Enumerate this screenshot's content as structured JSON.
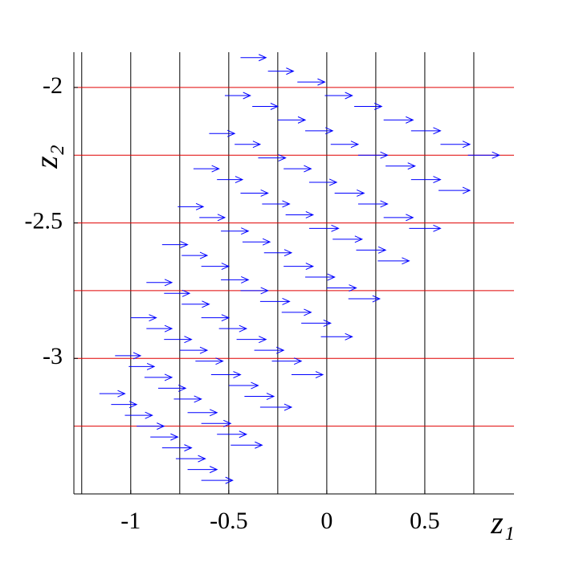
{
  "chart_data": {
    "type": "quiver",
    "x_label": "z₁",
    "y_label": "z₂",
    "xlim": [
      -1.29,
      0.955
    ],
    "ylim": [
      -3.5,
      -1.87
    ],
    "xticks": [
      -1,
      -0.5,
      0,
      0.5
    ],
    "yticks": [
      -2,
      -2.5,
      -3
    ],
    "xgrid_lines": [
      -1.25,
      -1,
      -0.75,
      -0.5,
      -0.25,
      0,
      0.25,
      0.5,
      0.75
    ],
    "xgrid_color": "#000000",
    "ygrid_lines": [
      -2,
      -2.25,
      -2.5,
      -2.75,
      -3,
      -3.25
    ],
    "ygrid_color": "#e00000",
    "color": "#0000ff",
    "x": [
      -0.44,
      -0.3,
      -0.15,
      -0.01,
      0.14,
      0.29,
      0.43,
      0.58,
      0.72,
      -0.52,
      -0.38,
      -0.25,
      -0.11,
      0.02,
      0.16,
      0.3,
      0.43,
      0.57,
      -0.6,
      -0.47,
      -0.35,
      -0.22,
      -0.09,
      0.04,
      0.16,
      0.29,
      0.42,
      -0.68,
      -0.56,
      -0.44,
      -0.33,
      -0.21,
      -0.09,
      0.03,
      0.15,
      0.26,
      -0.76,
      -0.65,
      -0.54,
      -0.43,
      -0.32,
      -0.22,
      -0.11,
      0.0,
      0.11,
      -0.84,
      -0.74,
      -0.64,
      -0.54,
      -0.44,
      -0.34,
      -0.23,
      -0.13,
      -0.03,
      -0.92,
      -0.83,
      -0.74,
      -0.64,
      -0.55,
      -0.46,
      -0.37,
      -0.28,
      -0.18,
      -1.0,
      -0.92,
      -0.83,
      -0.75,
      -0.67,
      -0.59,
      -0.5,
      -0.42,
      -0.34,
      -1.08,
      -1.01,
      -0.93,
      -0.86,
      -0.78,
      -0.71,
      -0.64,
      -0.56,
      -0.49,
      -1.16,
      -1.1,
      -1.03,
      -0.97,
      -0.9,
      -0.84,
      -0.77,
      -0.71,
      -0.64
    ],
    "y": [
      -1.89,
      -1.94,
      -1.98,
      -2.03,
      -2.07,
      -2.12,
      -2.16,
      -2.21,
      -2.25,
      -2.03,
      -2.07,
      -2.12,
      -2.16,
      -2.21,
      -2.25,
      -2.29,
      -2.34,
      -2.38,
      -2.17,
      -2.21,
      -2.26,
      -2.3,
      -2.35,
      -2.39,
      -2.43,
      -2.48,
      -2.52,
      -2.3,
      -2.34,
      -2.39,
      -2.43,
      -2.47,
      -2.52,
      -2.56,
      -2.6,
      -2.64,
      -2.44,
      -2.48,
      -2.53,
      -2.57,
      -2.61,
      -2.66,
      -2.7,
      -2.74,
      -2.78,
      -2.58,
      -2.62,
      -2.66,
      -2.71,
      -2.75,
      -2.79,
      -2.83,
      -2.87,
      -2.92,
      -2.72,
      -2.76,
      -2.8,
      -2.85,
      -2.89,
      -2.93,
      -2.97,
      -3.01,
      -3.06,
      -2.85,
      -2.89,
      -2.93,
      -2.97,
      -3.01,
      -3.06,
      -3.1,
      -3.14,
      -3.18,
      -2.99,
      -3.03,
      -3.07,
      -3.11,
      -3.15,
      -3.2,
      -3.24,
      -3.28,
      -3.32,
      -3.13,
      -3.17,
      -3.21,
      -3.25,
      -3.29,
      -3.33,
      -3.37,
      -3.41,
      -3.45
    ],
    "u": [
      0.13,
      0.13,
      0.14,
      0.14,
      0.14,
      0.15,
      0.15,
      0.15,
      0.16,
      0.13,
      0.13,
      0.14,
      0.14,
      0.14,
      0.15,
      0.15,
      0.15,
      0.16,
      0.13,
      0.13,
      0.14,
      0.14,
      0.14,
      0.15,
      0.15,
      0.15,
      0.16,
      0.13,
      0.13,
      0.14,
      0.14,
      0.14,
      0.15,
      0.15,
      0.15,
      0.16,
      0.13,
      0.13,
      0.14,
      0.14,
      0.14,
      0.15,
      0.15,
      0.15,
      0.16,
      0.13,
      0.13,
      0.14,
      0.14,
      0.14,
      0.15,
      0.15,
      0.15,
      0.16,
      0.13,
      0.13,
      0.14,
      0.14,
      0.14,
      0.15,
      0.15,
      0.15,
      0.16,
      0.13,
      0.13,
      0.14,
      0.14,
      0.14,
      0.15,
      0.15,
      0.15,
      0.16,
      0.13,
      0.13,
      0.14,
      0.14,
      0.14,
      0.15,
      0.15,
      0.15,
      0.16,
      0.13,
      0.13,
      0.14,
      0.14,
      0.14,
      0.15,
      0.15,
      0.15,
      0.16
    ]
  }
}
